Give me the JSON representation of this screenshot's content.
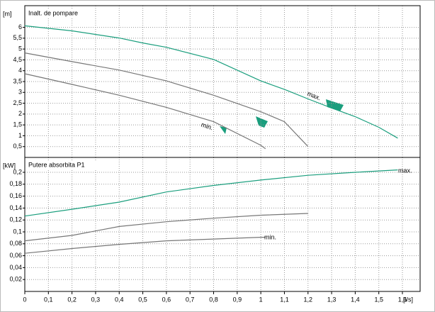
{
  "chart_data": [
    {
      "type": "line",
      "title": "Inalt. de pompare",
      "y_label": "[m]",
      "xlim": [
        0,
        1.675
      ],
      "ylim": [
        0,
        7
      ],
      "yticks": [
        {
          "value": 0.5,
          "label": "0,5"
        },
        1,
        {
          "value": 1.5,
          "label": "1,5"
        },
        2,
        {
          "value": 2.5,
          "label": "2,5"
        },
        3,
        {
          "value": 3.5,
          "label": "3,5"
        },
        4,
        {
          "value": 4.5,
          "label": "4,5"
        },
        5,
        {
          "value": 5.5,
          "label": "5,5"
        },
        6
      ],
      "grid": true,
      "series": [
        {
          "name": "max.",
          "color": "#1a9e7d",
          "x": [
            0,
            0.2,
            0.4,
            0.5,
            0.6,
            0.8,
            1.0,
            1.1,
            1.2,
            1.3,
            1.4,
            1.5,
            1.58
          ],
          "values": [
            6.07,
            5.84,
            5.51,
            5.28,
            5.08,
            4.52,
            3.53,
            3.14,
            2.7,
            2.28,
            1.88,
            1.39,
            0.89
          ]
        },
        {
          "color": "#777777",
          "x": [
            0,
            0.2,
            0.4,
            0.6,
            0.8,
            1.0,
            1.1,
            1.2
          ],
          "values": [
            4.82,
            4.42,
            4.03,
            3.53,
            2.87,
            2.11,
            1.65,
            0.5
          ]
        },
        {
          "name": "min.",
          "color": "#777777",
          "x": [
            0,
            0.2,
            0.4,
            0.6,
            0.8,
            1.0,
            1.02
          ],
          "values": [
            3.86,
            3.37,
            2.87,
            2.31,
            1.65,
            0.56,
            0.4
          ]
        }
      ]
    },
    {
      "type": "line",
      "title": "Putere absorbita P1",
      "y_label": "[kW]",
      "x_label": "[l/s]",
      "xlim": [
        0,
        1.675
      ],
      "ylim": [
        0,
        0.225
      ],
      "xticks": [
        0,
        {
          "value": 0.1,
          "label": "0,1"
        },
        {
          "value": 0.2,
          "label": "0,2"
        },
        {
          "value": 0.3,
          "label": "0,3"
        },
        {
          "value": 0.4,
          "label": "0,4"
        },
        {
          "value": 0.5,
          "label": "0,5"
        },
        {
          "value": 0.6,
          "label": "0,6"
        },
        {
          "value": 0.7,
          "label": "0,7"
        },
        {
          "value": 0.8,
          "label": "0,8"
        },
        {
          "value": 0.9,
          "label": "0,9"
        },
        1,
        {
          "value": 1.1,
          "label": "1,1"
        },
        {
          "value": 1.2,
          "label": "1,2"
        },
        {
          "value": 1.3,
          "label": "1,3"
        },
        {
          "value": 1.4,
          "label": "1,4"
        },
        {
          "value": 1.5,
          "label": "1,5"
        },
        {
          "value": 1.6,
          "label": "1,6"
        }
      ],
      "yticks": [
        {
          "value": 0.02,
          "label": "0,02"
        },
        {
          "value": 0.04,
          "label": "0,04"
        },
        {
          "value": 0.06,
          "label": "0,06"
        },
        {
          "value": 0.08,
          "label": "0,08"
        },
        {
          "value": 0.1,
          "label": "0,1"
        },
        {
          "value": 0.12,
          "label": "0,12"
        },
        {
          "value": 0.14,
          "label": "0,14"
        },
        {
          "value": 0.16,
          "label": "0,16"
        },
        {
          "value": 0.18,
          "label": "0,18"
        },
        {
          "value": 0.2,
          "label": "0,2"
        }
      ],
      "grid": true,
      "series": [
        {
          "name": "max.",
          "color": "#1a9e7d",
          "x": [
            0,
            0.2,
            0.4,
            0.6,
            0.8,
            1.0,
            1.2,
            1.4,
            1.58
          ],
          "values": [
            0.1265,
            0.138,
            0.15,
            0.167,
            0.178,
            0.187,
            0.195,
            0.2,
            0.204
          ]
        },
        {
          "color": "#777777",
          "x": [
            0,
            0.2,
            0.4,
            0.6,
            0.8,
            1.0,
            1.2
          ],
          "values": [
            0.085,
            0.094,
            0.109,
            0.117,
            0.123,
            0.128,
            0.131
          ]
        },
        {
          "name": "min.",
          "color": "#777777",
          "x": [
            0,
            0.2,
            0.4,
            0.6,
            0.8,
            1.0,
            1.02
          ],
          "values": [
            0.064,
            0.072,
            0.079,
            0.085,
            0.088,
            0.091,
            0.091
          ]
        }
      ]
    }
  ]
}
